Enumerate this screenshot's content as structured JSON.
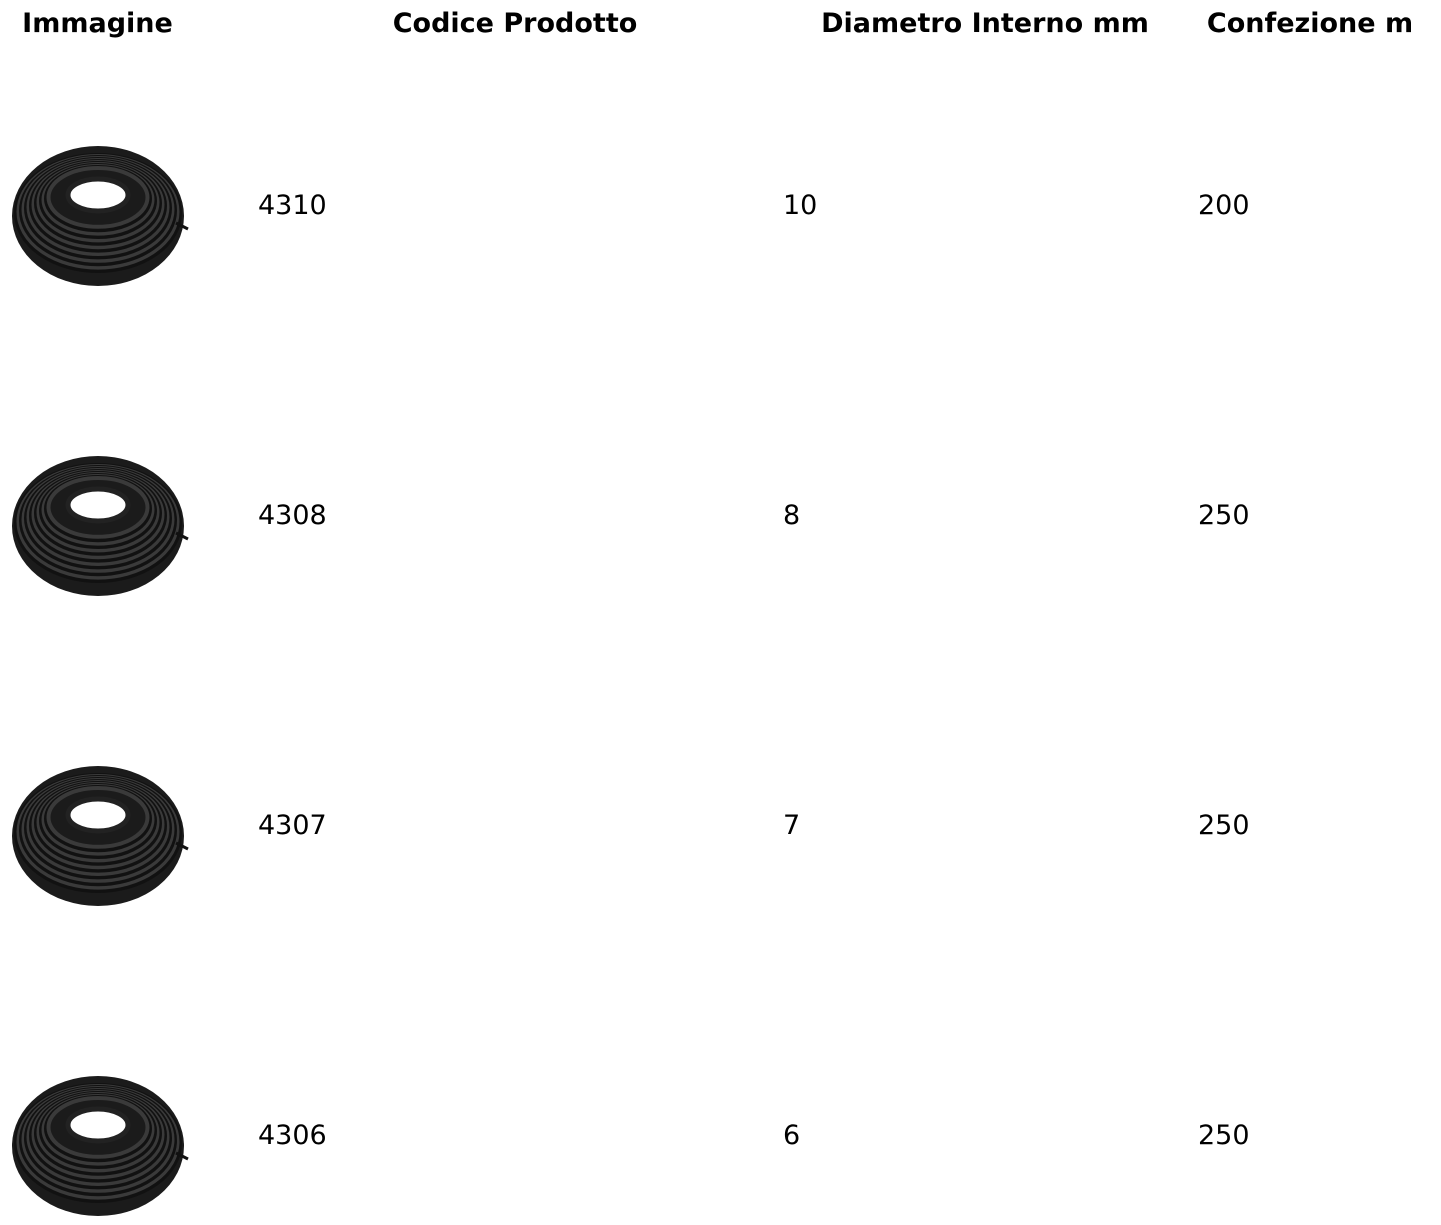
{
  "table": {
    "headers": [
      "Immagine",
      "Codice Prodotto",
      "Diametro Interno mm",
      "Confezione m"
    ],
    "rows": [
      [
        "4310",
        "10",
        "200"
      ],
      [
        "4308",
        "8",
        "250"
      ],
      [
        "4307",
        "7",
        "250"
      ],
      [
        "4306",
        "6",
        "250"
      ]
    ]
  }
}
